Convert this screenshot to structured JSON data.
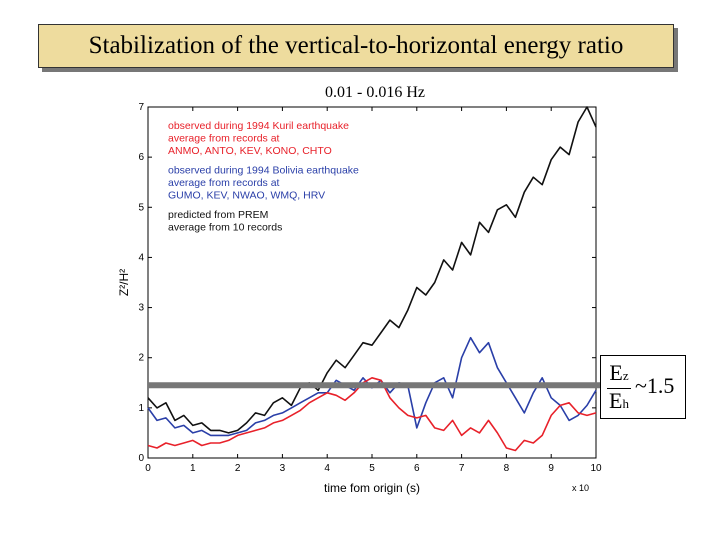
{
  "title": "Stabilization of the vertical-to-horizontal energy ratio",
  "chart_data": {
    "type": "line",
    "title": "0.01 - 0.016 Hz",
    "xlabel": "time fom origin (s)",
    "x_multiplier": "x 10",
    "ylabel": "Z²/H²",
    "xlim": [
      0,
      10
    ],
    "ylim": [
      0,
      7
    ],
    "xticks": [
      "0",
      "1",
      "2",
      "3",
      "4",
      "5",
      "6",
      "7",
      "8",
      "9",
      "10"
    ],
    "yticks": [
      "0",
      "1",
      "2",
      "3",
      "4",
      "5",
      "6",
      "7"
    ],
    "legend": [
      {
        "line1": "observed during 1994 Kuril earthquake",
        "line2": "average from records at",
        "line3": "ANMO, ANTO, KEV, KONO, CHTO",
        "color": "#e8212a"
      },
      {
        "line1": "observed during 1994 Bolivia earthquake",
        "line2": "average from records at",
        "line3": "GUMO, KEV, NWAO, WMQ, HRV",
        "color": "#2a3fa8"
      },
      {
        "line1": "predicted from PREM",
        "line2": "average from 10 records",
        "line3": "",
        "color": "#111111"
      }
    ],
    "reference_line": {
      "y": 1.45,
      "color": "#777777"
    },
    "series": [
      {
        "color": "#111111",
        "x": [
          0,
          0.2,
          0.4,
          0.6,
          0.8,
          1.0,
          1.2,
          1.4,
          1.6,
          1.8,
          2.0,
          2.2,
          2.4,
          2.6,
          2.8,
          3.0,
          3.2,
          3.4,
          3.6,
          3.8,
          4.0,
          4.2,
          4.4,
          4.6,
          4.8,
          5.0,
          5.2,
          5.4,
          5.6,
          5.8,
          6.0,
          6.2,
          6.4,
          6.6,
          6.8,
          7.0,
          7.2,
          7.4,
          7.6,
          7.8,
          8.0,
          8.2,
          8.4,
          8.6,
          8.8,
          9.0,
          9.2,
          9.4,
          9.6,
          9.8,
          10.0
        ],
        "y": [
          1.2,
          1.0,
          1.1,
          0.75,
          0.85,
          0.65,
          0.7,
          0.55,
          0.55,
          0.5,
          0.55,
          0.7,
          0.9,
          0.85,
          1.1,
          1.2,
          1.05,
          1.4,
          1.5,
          1.35,
          1.7,
          1.95,
          1.8,
          2.05,
          2.3,
          2.25,
          2.5,
          2.75,
          2.6,
          2.95,
          3.4,
          3.25,
          3.5,
          3.95,
          3.75,
          4.3,
          4.05,
          4.7,
          4.5,
          4.95,
          5.05,
          4.8,
          5.3,
          5.6,
          5.45,
          5.95,
          6.2,
          6.05,
          6.7,
          7.0,
          6.6
        ]
      },
      {
        "color": "#2a3fa8",
        "x": [
          0,
          0.2,
          0.4,
          0.6,
          0.8,
          1.0,
          1.2,
          1.4,
          1.6,
          1.8,
          2.0,
          2.2,
          2.4,
          2.6,
          2.8,
          3.0,
          3.2,
          3.4,
          3.6,
          3.8,
          4.0,
          4.2,
          4.4,
          4.6,
          4.8,
          5.0,
          5.2,
          5.4,
          5.6,
          5.8,
          6.0,
          6.2,
          6.4,
          6.6,
          6.8,
          7.0,
          7.2,
          7.4,
          7.6,
          7.8,
          8.0,
          8.2,
          8.4,
          8.6,
          8.8,
          9.0,
          9.2,
          9.4,
          9.6,
          9.8,
          10.0
        ],
        "y": [
          1.0,
          0.75,
          0.8,
          0.6,
          0.65,
          0.5,
          0.55,
          0.45,
          0.45,
          0.45,
          0.5,
          0.55,
          0.7,
          0.75,
          0.85,
          0.9,
          1.0,
          1.1,
          1.2,
          1.3,
          1.3,
          1.55,
          1.45,
          1.35,
          1.6,
          1.4,
          1.55,
          1.3,
          1.5,
          1.45,
          0.6,
          1.1,
          1.5,
          1.6,
          1.2,
          2.0,
          2.4,
          2.1,
          2.3,
          1.8,
          1.5,
          1.2,
          0.9,
          1.3,
          1.6,
          1.2,
          1.05,
          0.75,
          0.85,
          1.05,
          1.35
        ]
      },
      {
        "color": "#e8212a",
        "x": [
          0,
          0.2,
          0.4,
          0.6,
          0.8,
          1.0,
          1.2,
          1.4,
          1.6,
          1.8,
          2.0,
          2.2,
          2.4,
          2.6,
          2.8,
          3.0,
          3.2,
          3.4,
          3.6,
          3.8,
          4.0,
          4.2,
          4.4,
          4.6,
          4.8,
          5.0,
          5.2,
          5.4,
          5.6,
          5.8,
          6.0,
          6.2,
          6.4,
          6.6,
          6.8,
          7.0,
          7.2,
          7.4,
          7.6,
          7.8,
          8.0,
          8.2,
          8.4,
          8.6,
          8.8,
          9.0,
          9.2,
          9.4,
          9.6,
          9.8,
          10.0
        ],
        "y": [
          0.25,
          0.2,
          0.3,
          0.25,
          0.3,
          0.35,
          0.25,
          0.3,
          0.3,
          0.35,
          0.45,
          0.5,
          0.55,
          0.6,
          0.7,
          0.75,
          0.85,
          0.95,
          1.1,
          1.2,
          1.3,
          1.25,
          1.15,
          1.3,
          1.5,
          1.6,
          1.55,
          1.2,
          1.0,
          0.85,
          0.8,
          0.85,
          0.6,
          0.55,
          0.75,
          0.45,
          0.6,
          0.5,
          0.75,
          0.5,
          0.2,
          0.15,
          0.35,
          0.3,
          0.45,
          0.85,
          1.05,
          1.1,
          0.9,
          0.85,
          0.9
        ]
      }
    ]
  },
  "ratio_box": {
    "numerator": "E",
    "numerator_sub": "z",
    "denominator": "E",
    "denominator_sub": "h",
    "approx": "~1.5"
  }
}
